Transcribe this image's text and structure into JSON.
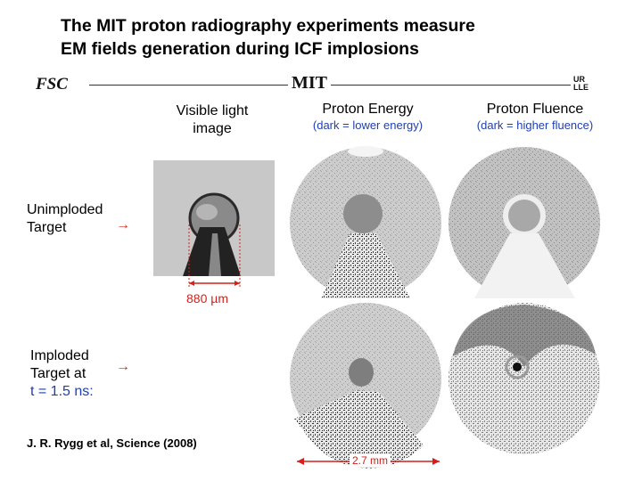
{
  "title_line1": "The MIT proton radiography experiments measure",
  "title_line2": "EM fields generation during ICF implosions",
  "logos": {
    "fsc": "FSC",
    "mit": "MIT",
    "urlle_line1": "UR",
    "urlle_line2": "LLE"
  },
  "columns": {
    "visible": {
      "line1": "Visible light",
      "line2": "image"
    },
    "energy": {
      "title": "Proton Energy",
      "subtitle": "(dark = lower energy)"
    },
    "fluence": {
      "title": "Proton Fluence",
      "subtitle": "(dark = higher fluence)"
    }
  },
  "rows": {
    "unimploded": {
      "line1": "Unimploded",
      "line2": "Target",
      "arrow": "→"
    },
    "imploded": {
      "line1": "Imploded",
      "line2": "Target at",
      "line3": "t = 1.5 ns:",
      "arrow": "→"
    }
  },
  "scale_visible": "880 µm",
  "scale_panels": "2.7 mm",
  "citation": "J. R. Rygg et al, Science (2008)",
  "colors": {
    "accent_red": "#d4201a",
    "accent_blue": "#1f3fb0"
  }
}
